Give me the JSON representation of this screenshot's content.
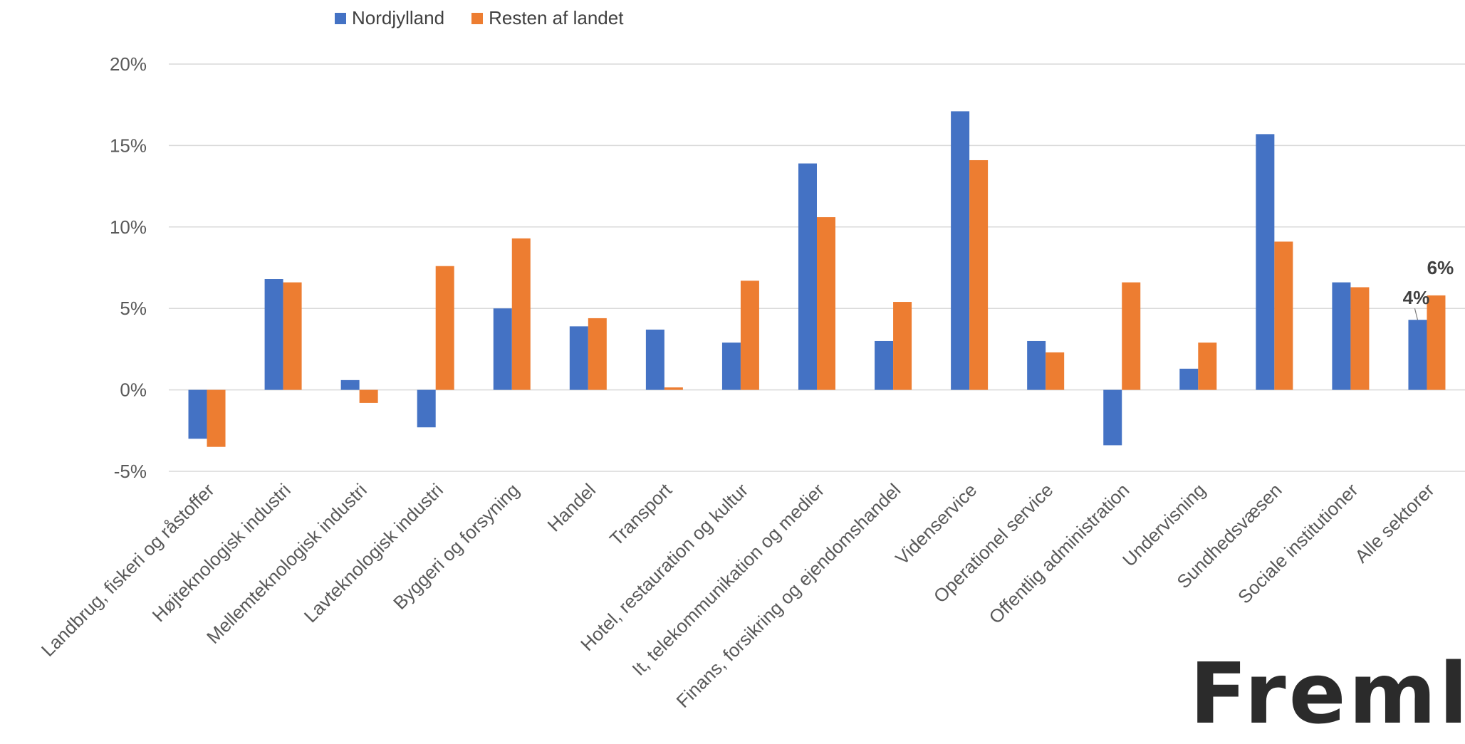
{
  "legend": {
    "items": [
      {
        "name": "Nordjylland",
        "color": "#4472C4"
      },
      {
        "name": "Resten af landet",
        "color": "#ED7D31"
      }
    ]
  },
  "logo": {
    "text": "Freml"
  },
  "chart_data": {
    "type": "bar",
    "title": "",
    "xlabel": "",
    "ylabel": "",
    "ylim": [
      -5,
      20
    ],
    "yticks": [
      -5,
      0,
      5,
      10,
      15,
      20
    ],
    "ytick_labels": [
      "-5%",
      "0%",
      "5%",
      "10%",
      "15%",
      "20%"
    ],
    "grid": true,
    "legend_position": "top",
    "categories": [
      "Landbrug, fiskeri og råstoffer",
      "Højteknologisk industri",
      "Mellemteknologisk industri",
      "Lavteknologisk industri",
      "Byggeri og forsyning",
      "Handel",
      "Transport",
      "Hotel, restauration og kultur",
      "It, telekommunikation og medier",
      "Finans, forsikring og ejendomshandel",
      "Videnservice",
      "Operationel service",
      "Offentlig administration",
      "Undervisning",
      "Sundhedsvæsen",
      "Sociale institutioner",
      "Alle sektorer"
    ],
    "series": [
      {
        "name": "Nordjylland",
        "color": "#4472C4",
        "values": [
          -3.0,
          6.8,
          0.6,
          -2.3,
          5.0,
          3.9,
          3.7,
          2.9,
          13.9,
          3.0,
          17.1,
          3.0,
          -3.4,
          1.3,
          15.7,
          6.6,
          4.3
        ]
      },
      {
        "name": "Resten af landet",
        "color": "#ED7D31",
        "values": [
          -3.5,
          6.6,
          -0.8,
          7.6,
          9.3,
          4.4,
          0.15,
          6.7,
          10.6,
          5.4,
          14.1,
          2.3,
          6.6,
          2.9,
          9.1,
          6.3,
          5.8
        ]
      }
    ],
    "annotations": [
      {
        "category": "Alle sektorer",
        "series": "Nordjylland",
        "text": "4%"
      },
      {
        "category": "Alle sektorer",
        "series": "Resten af landet",
        "text": "6%"
      }
    ]
  }
}
